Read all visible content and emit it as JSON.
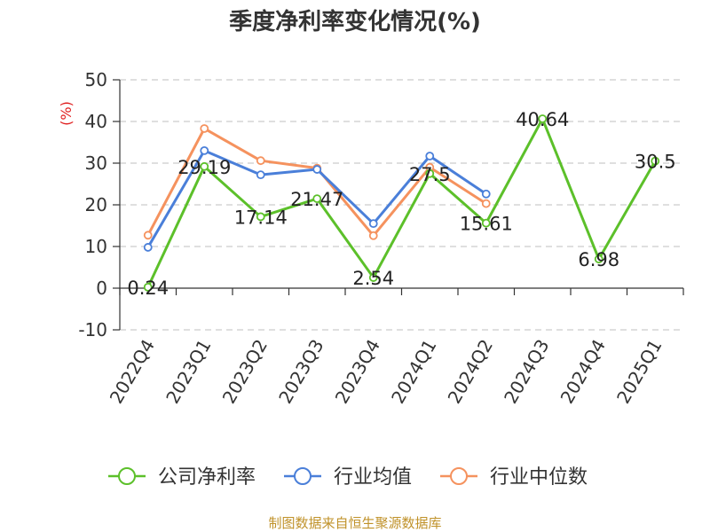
{
  "source": "制图数据来自恒生聚源数据库",
  "chart_data": {
    "type": "line",
    "title": "季度净利率变化情况(%)",
    "ylabel": "(%)",
    "categories": [
      "2022Q4",
      "2023Q1",
      "2023Q2",
      "2023Q3",
      "2023Q4",
      "2024Q1",
      "2024Q2",
      "2024Q3",
      "2024Q4",
      "2025Q1"
    ],
    "ylim": [
      -10,
      50
    ],
    "yticks": [
      -10,
      0,
      10,
      20,
      30,
      40,
      50
    ],
    "grid": true,
    "legend_position": "bottom",
    "series": [
      {
        "name": "公司净利率",
        "color": "#5cc02a",
        "values": [
          0.24,
          29.19,
          17.14,
          21.47,
          2.54,
          27.5,
          15.61,
          40.64,
          6.98,
          30.5
        ],
        "labels": [
          "0.24",
          "29.19",
          "17.14",
          "21.47",
          "2.54",
          "27.5",
          "15.61",
          "40.64",
          "6.98",
          "30.5"
        ]
      },
      {
        "name": "行业均值",
        "color": "#4a7fd9",
        "values": [
          9.8,
          33.0,
          27.2,
          28.5,
          15.5,
          31.7,
          22.6,
          null,
          null,
          null
        ]
      },
      {
        "name": "行业中位数",
        "color": "#f5925e",
        "values": [
          12.7,
          38.3,
          30.6,
          28.8,
          12.6,
          29.0,
          20.3,
          null,
          null,
          null
        ]
      }
    ]
  }
}
